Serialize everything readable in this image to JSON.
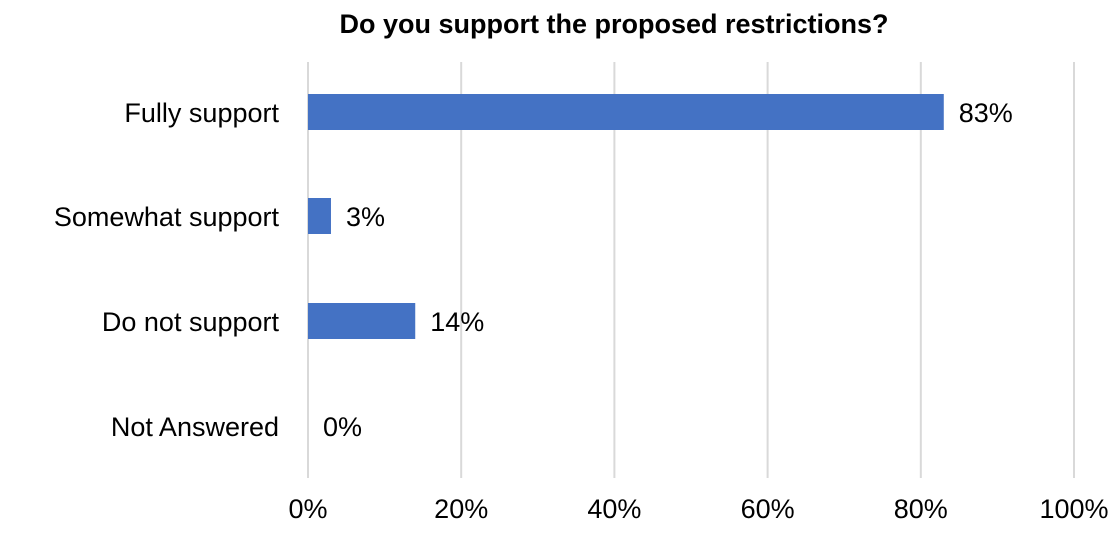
{
  "chart_data": {
    "type": "bar",
    "orientation": "horizontal",
    "title": "Do you support the proposed restrictions?",
    "categories": [
      "Fully support",
      "Somewhat support",
      "Do not support",
      "Not Answered"
    ],
    "values": [
      83,
      3,
      14,
      0
    ],
    "data_labels": [
      "83%",
      "3%",
      "14%",
      "0%"
    ],
    "xlim": [
      0,
      100
    ],
    "x_ticks": [
      0,
      20,
      40,
      60,
      80,
      100
    ],
    "x_tick_labels": [
      "0%",
      "20%",
      "40%",
      "60%",
      "80%",
      "100%"
    ],
    "grid": "vertical",
    "legend": "none",
    "colors": {
      "bar": "#4472C4",
      "grid": "#D9D9D9",
      "text": "#000000"
    }
  }
}
